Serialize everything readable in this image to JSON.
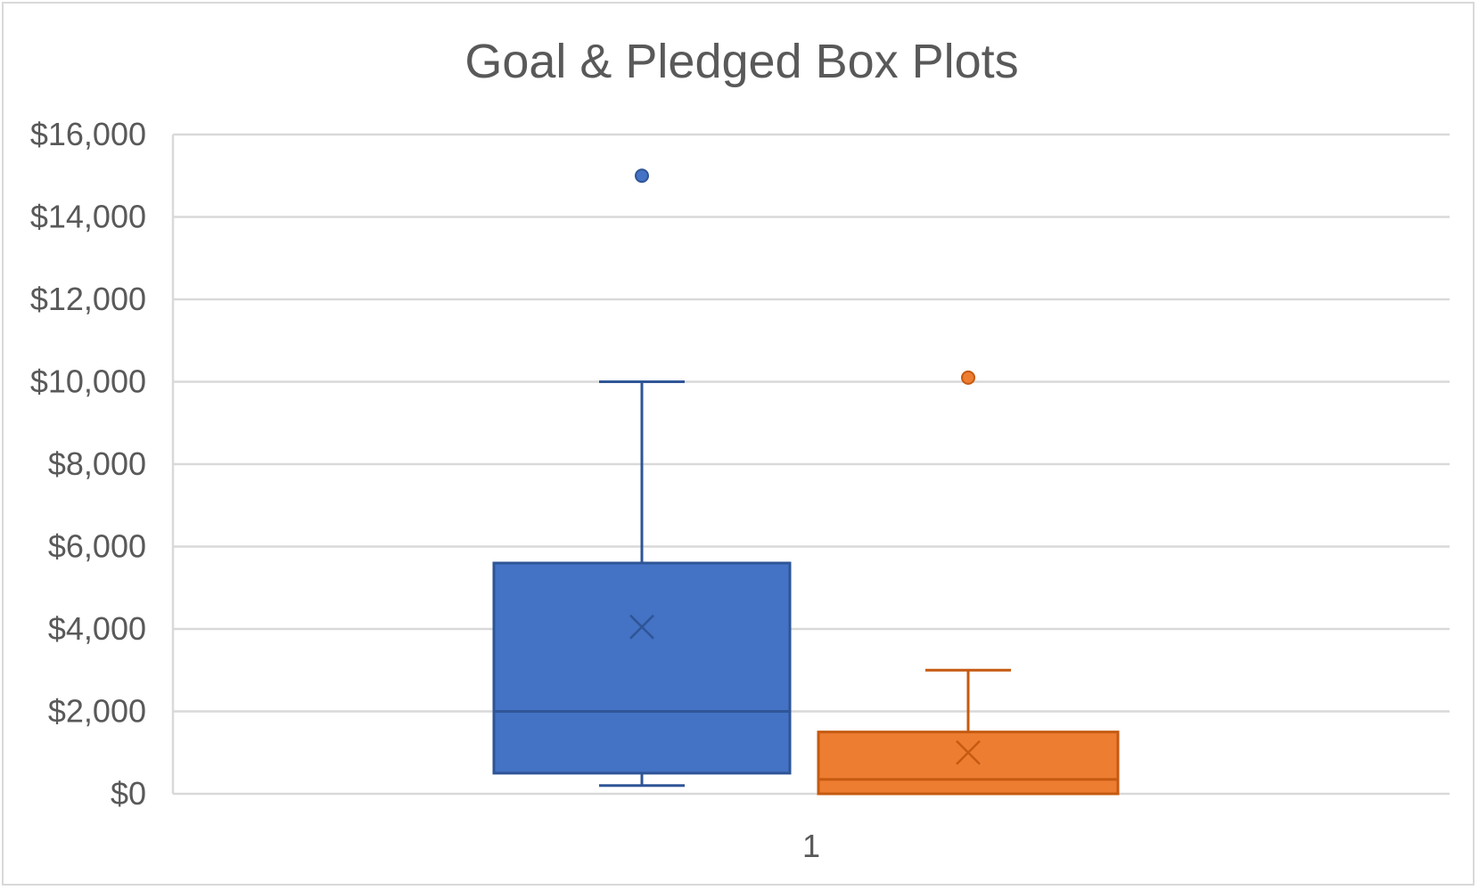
{
  "chart_data": {
    "type": "box",
    "title": "Goal & Pledged Box Plots",
    "xlabel": "",
    "ylabel": "",
    "categories": [
      "1"
    ],
    "ylim": [
      0,
      16000
    ],
    "yticks": [
      0,
      2000,
      4000,
      6000,
      8000,
      10000,
      12000,
      14000,
      16000
    ],
    "ytick_labels": [
      "$0",
      "$2,000",
      "$4,000",
      "$6,000",
      "$8,000",
      "$10,000",
      "$12,000",
      "$14,000",
      "$16,000"
    ],
    "grid": true,
    "legend": "none",
    "series": [
      {
        "color": "#4472C4",
        "edge_color": "#2F5597",
        "whisker_low": 200,
        "q1": 500,
        "median": 2000,
        "q3": 5600,
        "whisker_high": 10000,
        "mean": 4050,
        "outliers": [
          15000
        ]
      },
      {
        "color": "#ED7D31",
        "edge_color": "#C55A11",
        "whisker_low": 0,
        "q1": 0,
        "median": 350,
        "q3": 1500,
        "whisker_high": 3000,
        "mean": 1000,
        "outliers": [
          10100
        ]
      }
    ]
  }
}
